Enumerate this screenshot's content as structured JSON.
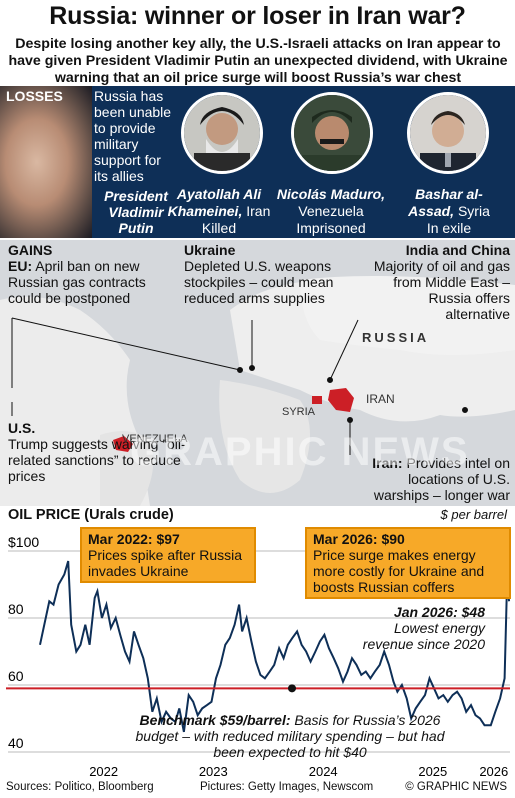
{
  "title": "Russia: winner or loser in Iran war?",
  "subtitle": "Despite losing another key ally, the U.S.-Israeli attacks on Iran appear to have given President Vladimir Putin an unexpected dividend, with Ukraine warning that an oil price surge will boost Russia’s war chest",
  "losses": {
    "label": "LOSSES",
    "text": "Russia has been unable to provide military support for its allies",
    "putin_caption": "President Vladimir Putin",
    "allies": [
      {
        "name": "Ayatollah Ali Khameinei,",
        "country": "Iran",
        "status": "Killed"
      },
      {
        "name": "Nicolás Maduro,",
        "country": "Venezuela",
        "status": "Imprisoned"
      },
      {
        "name": "Bashar al-Assad,",
        "country": "Syria",
        "status": "In exile"
      }
    ]
  },
  "gains": {
    "label": "GAINS",
    "eu": {
      "head": "EU:",
      "text": "April ban on new Russian gas contracts could be postponed"
    },
    "ukraine": {
      "head": "Ukraine",
      "text": "Depleted U.S. weapons stockpiles – could mean reduced arms supplies"
    },
    "india_china": {
      "head": "India and China",
      "text": "Majority of oil and gas from Middle East – Russia offers alternative"
    },
    "us": {
      "head": "U.S.",
      "text": "Trump suggests waiving “oil-related sanctions” to reduce prices"
    },
    "iran": {
      "head": "Iran:",
      "text": "Provides intel on locations of U.S. warships – longer war keeps oil prices high"
    }
  },
  "map_labels": {
    "russia": "RUSSIA",
    "iran": "IRAN",
    "syria": "SYRIA",
    "venezuela": "VENEZUELA",
    "watermark": "GRAPHIC NEWS"
  },
  "chart_data": {
    "type": "line",
    "title": "OIL PRICE (Urals crude)",
    "unit": "$ per barrel",
    "ylim": [
      40,
      105
    ],
    "yticks": [
      "$100",
      "80",
      "60",
      "40"
    ],
    "ytick_values": [
      100,
      80,
      60,
      40
    ],
    "xticks": [
      "2022",
      "2023",
      "2024",
      "2025",
      "2026"
    ],
    "series": [
      {
        "color": "#0e2f57",
        "points": [
          [
            "2021-12-01",
            72
          ],
          [
            "2022-01-01",
            85
          ],
          [
            "2022-01-15",
            84
          ],
          [
            "2022-02-01",
            90
          ],
          [
            "2022-02-20",
            93
          ],
          [
            "2022-03-05",
            97
          ],
          [
            "2022-03-15",
            78
          ],
          [
            "2022-04-01",
            70
          ],
          [
            "2022-04-15",
            72
          ],
          [
            "2022-05-01",
            78
          ],
          [
            "2022-05-15",
            72
          ],
          [
            "2022-06-01",
            86
          ],
          [
            "2022-06-10",
            88
          ],
          [
            "2022-06-25",
            80
          ],
          [
            "2022-07-10",
            84
          ],
          [
            "2022-07-25",
            77
          ],
          [
            "2022-08-10",
            80
          ],
          [
            "2022-08-25",
            75
          ],
          [
            "2022-09-10",
            70
          ],
          [
            "2022-09-25",
            67
          ],
          [
            "2022-10-10",
            76
          ],
          [
            "2022-10-25",
            72
          ],
          [
            "2022-11-10",
            68
          ],
          [
            "2022-11-25",
            62
          ],
          [
            "2022-12-10",
            52
          ],
          [
            "2022-12-25",
            56
          ],
          [
            "2023-01-10",
            49
          ],
          [
            "2023-01-25",
            52
          ],
          [
            "2023-02-10",
            50
          ],
          [
            "2023-02-25",
            49
          ],
          [
            "2023-03-10",
            53
          ],
          [
            "2023-03-25",
            46
          ],
          [
            "2023-04-10",
            57
          ],
          [
            "2023-04-25",
            55
          ],
          [
            "2023-05-10",
            51
          ],
          [
            "2023-05-25",
            53
          ],
          [
            "2023-06-10",
            54
          ],
          [
            "2023-06-25",
            55
          ],
          [
            "2023-07-10",
            62
          ],
          [
            "2023-07-25",
            66
          ],
          [
            "2023-08-10",
            72
          ],
          [
            "2023-08-25",
            74
          ],
          [
            "2023-09-10",
            78
          ],
          [
            "2023-09-25",
            84
          ],
          [
            "2023-10-05",
            76
          ],
          [
            "2023-10-20",
            80
          ],
          [
            "2023-11-05",
            73
          ],
          [
            "2023-11-20",
            67
          ],
          [
            "2023-12-05",
            63
          ],
          [
            "2023-12-20",
            62
          ],
          [
            "2024-01-05",
            64
          ],
          [
            "2024-01-20",
            66
          ],
          [
            "2024-02-05",
            71
          ],
          [
            "2024-02-20",
            68
          ],
          [
            "2024-03-05",
            72
          ],
          [
            "2024-03-20",
            74
          ],
          [
            "2024-04-05",
            76
          ],
          [
            "2024-04-20",
            72
          ],
          [
            "2024-05-05",
            70
          ],
          [
            "2024-05-20",
            67
          ],
          [
            "2024-06-05",
            70
          ],
          [
            "2024-06-20",
            73
          ],
          [
            "2024-07-05",
            75
          ],
          [
            "2024-07-20",
            71
          ],
          [
            "2024-08-05",
            68
          ],
          [
            "2024-08-20",
            65
          ],
          [
            "2024-09-05",
            61
          ],
          [
            "2024-09-20",
            64
          ],
          [
            "2024-10-05",
            68
          ],
          [
            "2024-10-20",
            66
          ],
          [
            "2024-11-05",
            63
          ],
          [
            "2024-11-20",
            64
          ],
          [
            "2024-12-05",
            62
          ],
          [
            "2024-12-20",
            64
          ],
          [
            "2025-01-05",
            66
          ],
          [
            "2025-01-20",
            70
          ],
          [
            "2025-02-05",
            66
          ],
          [
            "2025-02-20",
            61
          ],
          [
            "2025-03-05",
            58
          ],
          [
            "2025-03-20",
            60
          ],
          [
            "2025-04-05",
            56
          ],
          [
            "2025-04-20",
            50
          ],
          [
            "2025-05-05",
            53
          ],
          [
            "2025-05-20",
            55
          ],
          [
            "2025-06-05",
            57
          ],
          [
            "2025-06-20",
            62
          ],
          [
            "2025-07-05",
            59
          ],
          [
            "2025-07-20",
            56
          ],
          [
            "2025-08-05",
            57
          ],
          [
            "2025-08-20",
            55
          ],
          [
            "2025-09-05",
            57
          ],
          [
            "2025-09-20",
            58
          ],
          [
            "2025-10-05",
            56
          ],
          [
            "2025-10-20",
            52
          ],
          [
            "2025-11-05",
            54
          ],
          [
            "2025-11-20",
            51
          ],
          [
            "2025-12-05",
            50
          ],
          [
            "2025-12-20",
            48
          ],
          [
            "2026-01-10",
            48
          ],
          [
            "2026-01-25",
            52
          ],
          [
            "2026-02-10",
            56
          ],
          [
            "2026-02-25",
            62
          ],
          [
            "2026-03-05",
            90
          ],
          [
            "2026-03-12",
            85
          ]
        ]
      }
    ],
    "reference_line": {
      "value": 59,
      "color": "#cc1f26"
    },
    "annotations": {
      "mar2022": {
        "head": "Mar 2022: $97",
        "text": "Prices spike after Russia invades Ukraine"
      },
      "mar2026": {
        "head": "Mar 2026: $90",
        "text": "Price surge makes energy more costly for Ukraine and boosts Russian coffers"
      },
      "jan2026": {
        "head": "Jan 2026: $48",
        "text": "Lowest energy revenue since 2020"
      },
      "benchmark": {
        "head": "Benchmark $59/barrel:",
        "text": "Basis for Russia’s 2026 budget – with reduced military spending – but had been expected to hit $40"
      }
    }
  },
  "footer": {
    "sources": "Sources: Politico, Bloomberg",
    "pictures": "Pictures: Getty Images, Newscom",
    "logo": "© GRAPHIC NEWS"
  }
}
